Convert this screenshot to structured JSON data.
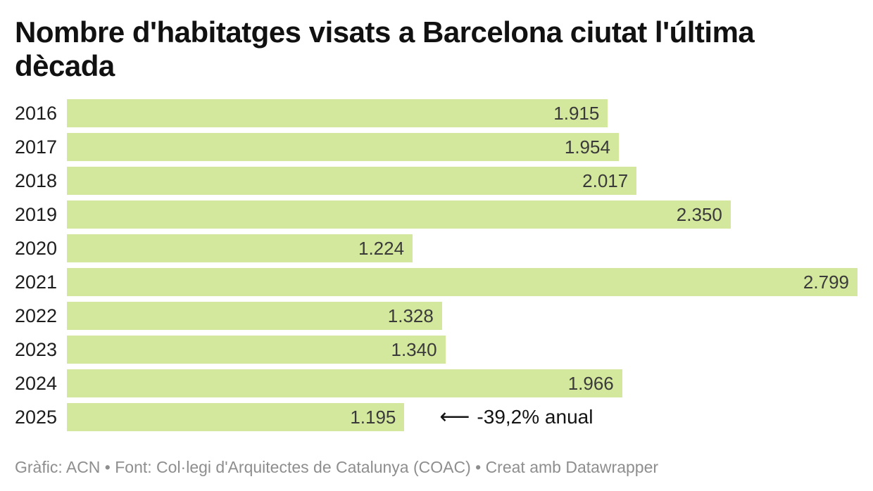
{
  "header": {
    "title_lines": [
      "Nombre d'habitatges visats a Barcelona ciutat l'última",
      "dècada"
    ]
  },
  "annotation": {
    "arrow": "⟵",
    "label": "-39,2% anual"
  },
  "footer": {
    "text": "Gràfic: ACN • Font: Col·legi d'Arquitectes de Catalunya (COAC) • Creat amb Datawrapper"
  },
  "colors": {
    "bar": "#d3e79d",
    "title": "#111111",
    "category_label": "#1d1d1d",
    "value_label": "#3a3a3a",
    "annotation": "#141414",
    "footer": "#8e8e8e"
  },
  "chart_data": {
    "type": "bar",
    "orientation": "horizontal",
    "title": "Nombre d'habitatges visats a Barcelona ciutat l'última dècada",
    "categories": [
      "2016",
      "2017",
      "2018",
      "2019",
      "2020",
      "2021",
      "2022",
      "2023",
      "2024",
      "2025"
    ],
    "values": [
      1915,
      1954,
      2017,
      2350,
      1224,
      2799,
      1328,
      1340,
      1966,
      1195
    ],
    "value_labels": [
      "1.915",
      "1.954",
      "2.017",
      "2.350",
      "1.224",
      "2.799",
      "1.328",
      "1.340",
      "1.966",
      "1.195"
    ],
    "xlim": [
      0,
      2799
    ],
    "xmax": 2799,
    "grid": false,
    "legend": "none",
    "value_label_position": "inside-end",
    "annotation": {
      "text": "-39,2% anual",
      "row": "2025"
    },
    "source": "Gràfic: ACN • Font: Col·legi d'Arquitectes de Catalunya (COAC) • Creat amb Datawrapper"
  }
}
